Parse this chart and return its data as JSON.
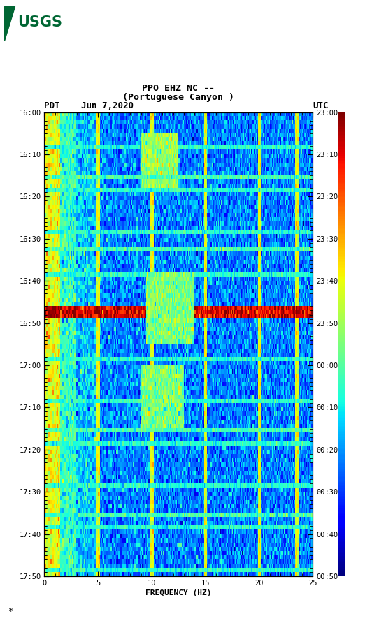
{
  "title_line1": "PPO EHZ NC --",
  "title_line2": "(Portuguese Canyon )",
  "date_label": "Jun 7,2020",
  "left_tz": "PDT",
  "right_tz": "UTC",
  "freq_label": "FREQUENCY (HZ)",
  "freq_min": 0,
  "freq_max": 25,
  "freq_ticks": [
    0,
    5,
    10,
    15,
    20,
    25
  ],
  "left_time_labels": [
    "16:00",
    "16:10",
    "16:20",
    "16:30",
    "16:40",
    "16:50",
    "17:00",
    "17:10",
    "17:20",
    "17:30",
    "17:40",
    "17:50"
  ],
  "right_time_labels": [
    "23:00",
    "23:10",
    "23:20",
    "23:30",
    "23:40",
    "23:50",
    "00:00",
    "00:10",
    "00:20",
    "00:30",
    "00:40",
    "00:50"
  ],
  "n_time_steps": 110,
  "n_freq_steps": 250,
  "bg_color": "#ffffff",
  "colormap": "jet",
  "vmin": 0,
  "vmax": 120,
  "usgs_color": "#006633",
  "base_level": 30,
  "bright_band_level": 110,
  "vertical_line_level": 75,
  "low_freq_level": 80
}
